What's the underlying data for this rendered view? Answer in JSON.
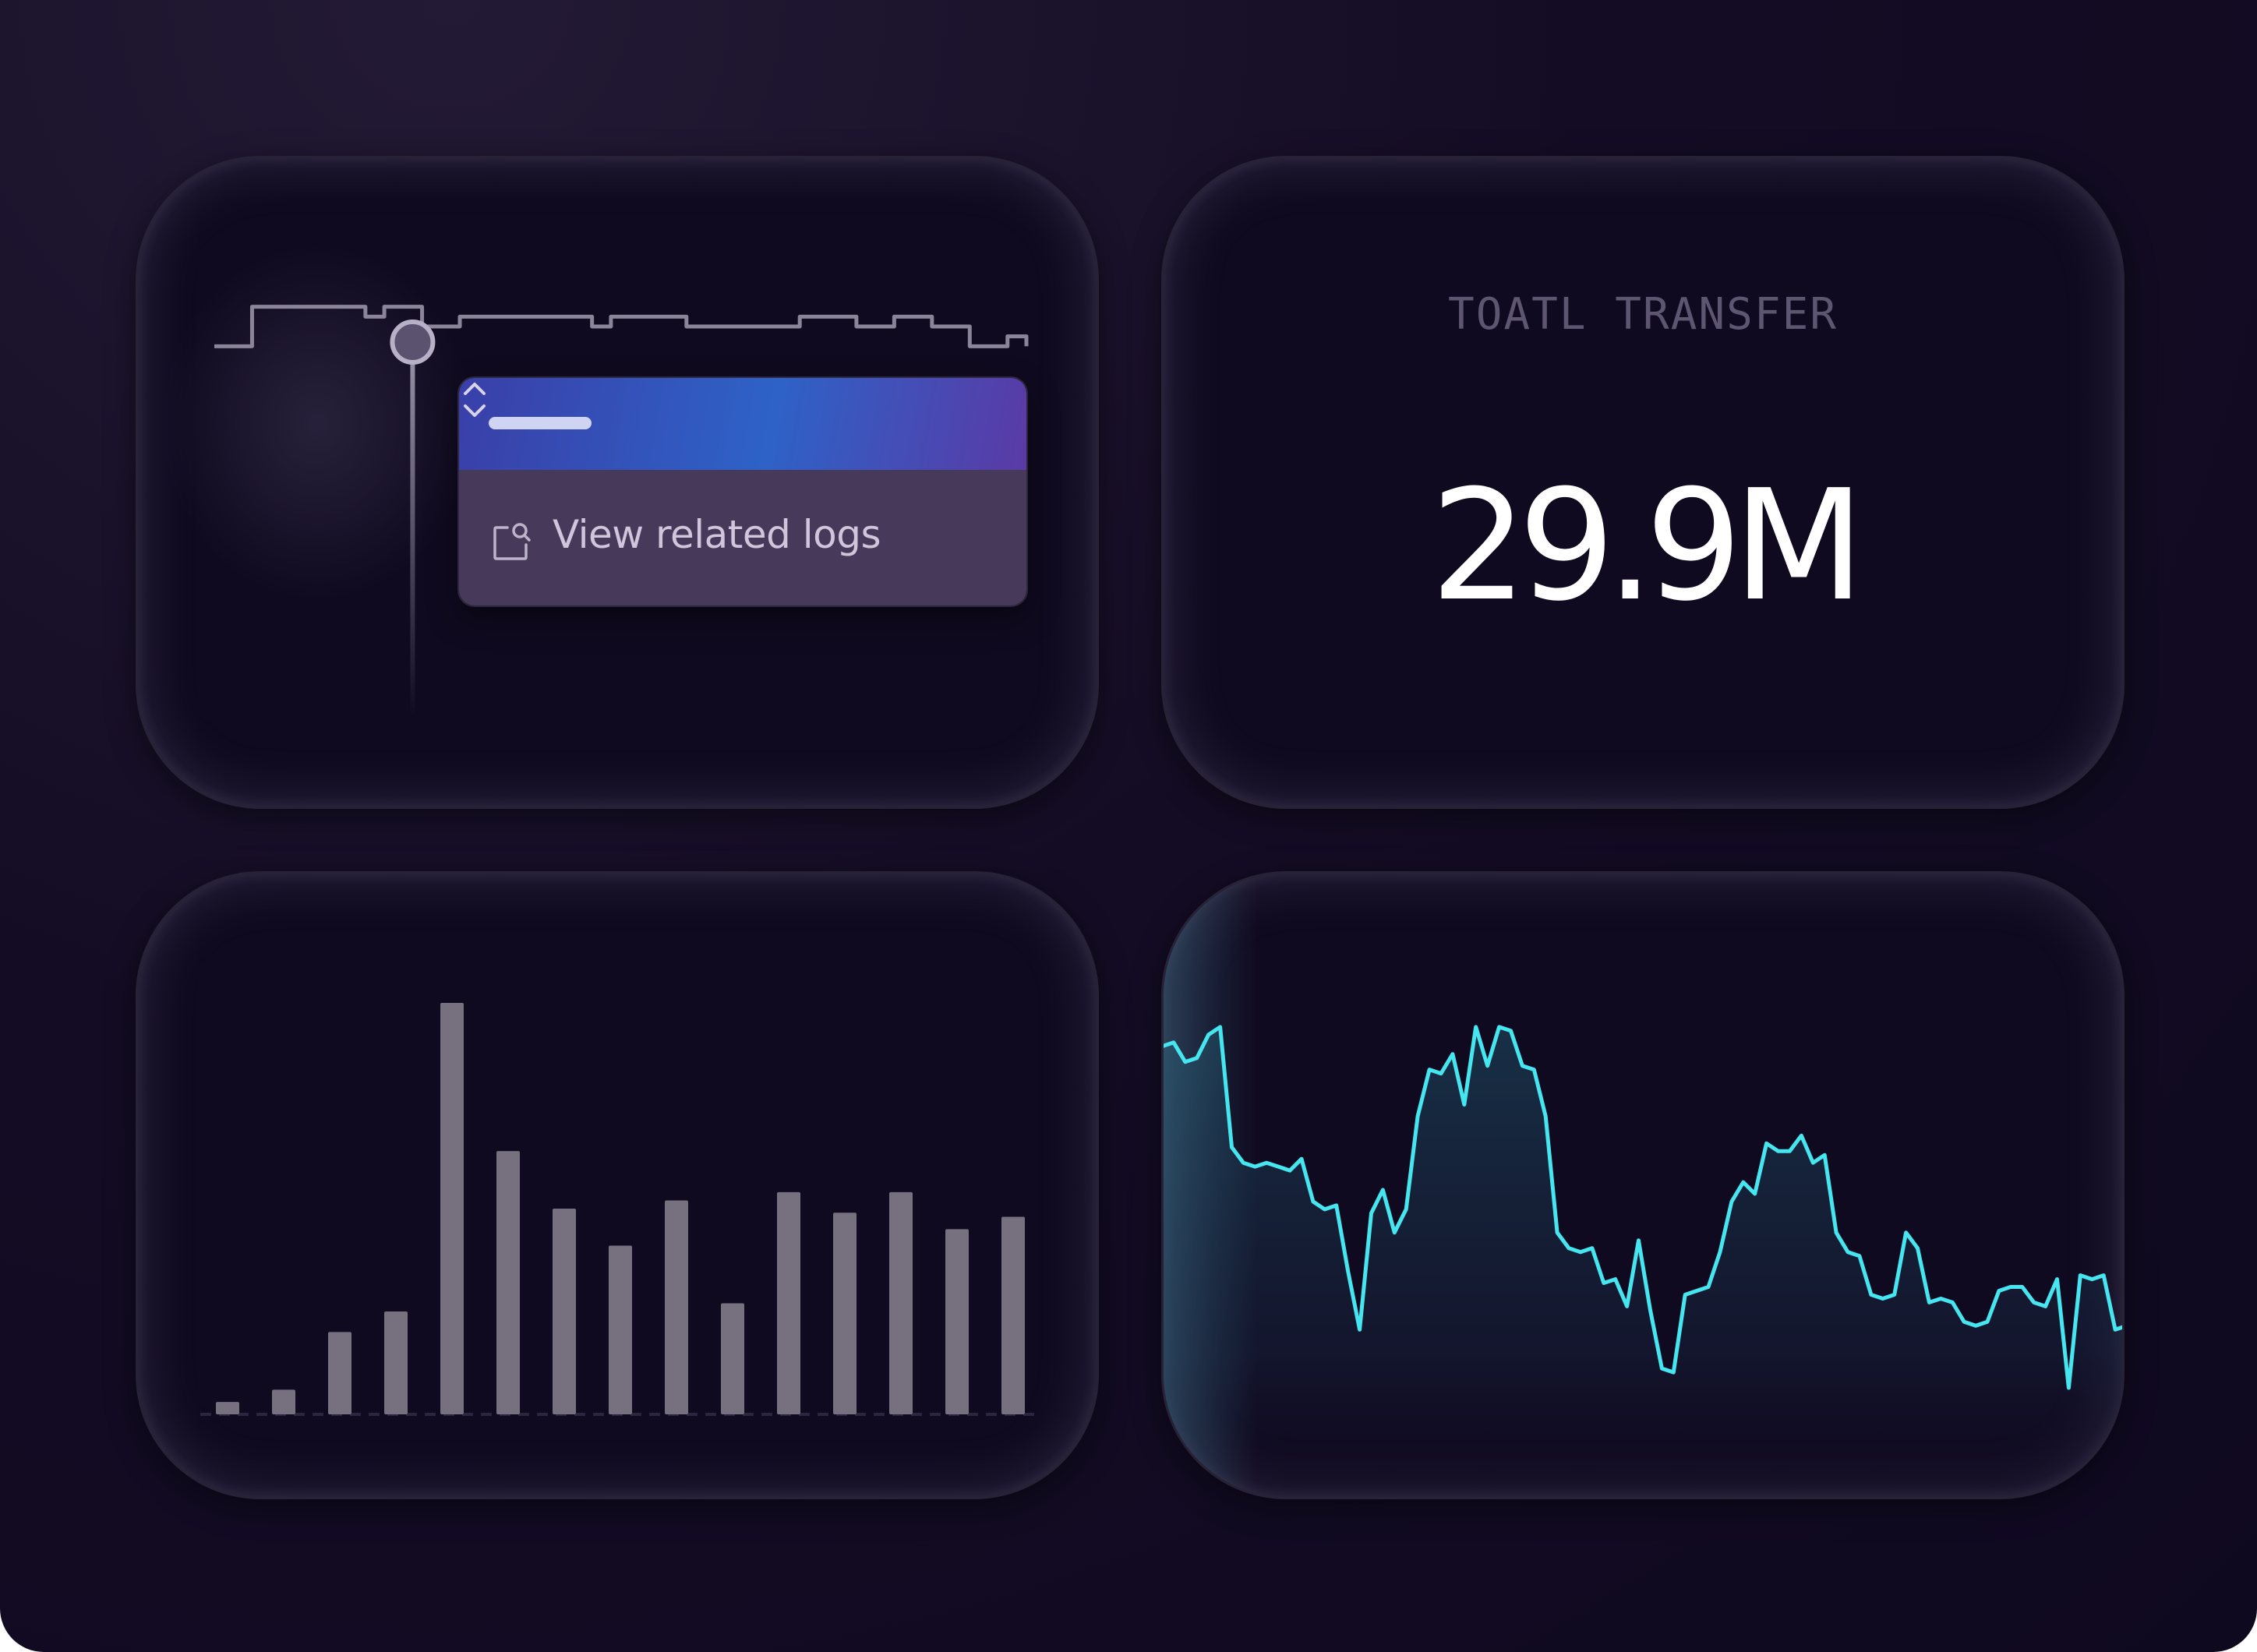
{
  "popup": {
    "action_label": "View related logs",
    "action_icon": "search-document-icon",
    "expand_icon": "chevron-up-down-icon"
  },
  "stat": {
    "label": "TOATL TRANSFER",
    "value": "29.9M"
  },
  "colors": {
    "background": "#100a20",
    "bar": "#77707f",
    "line_accent": "#45e6f0",
    "muted_line": "#8c8599",
    "popup_header_gradient": [
      "#3a3fa8",
      "#2e62c7",
      "#5a3aa6"
    ],
    "popup_body": "#46395a"
  },
  "chart_data": [
    {
      "type": "line",
      "title": "",
      "xlabel": "",
      "ylabel": "",
      "grid": false,
      "series": [
        {
          "values": [
            0,
            0,
            4,
            4,
            4,
            4,
            4,
            4,
            3,
            4,
            4,
            2,
            2,
            3,
            3,
            3,
            3,
            3,
            3,
            3,
            2,
            3,
            3,
            3,
            3,
            2,
            2,
            2,
            2,
            2,
            2,
            3,
            3,
            3,
            2,
            2,
            3,
            3,
            2,
            2,
            0,
            0,
            1,
            0
          ]
        }
      ],
      "ylim": [
        -10,
        5
      ],
      "selected_index": 10
    },
    {
      "type": "bar",
      "title": "",
      "xlabel": "",
      "ylabel": "",
      "grid": false,
      "values": [
        3,
        6,
        20,
        25,
        100,
        64,
        50,
        41,
        52,
        27,
        54,
        49,
        54,
        45,
        48
      ],
      "ylim": [
        0,
        100
      ]
    },
    {
      "type": "area",
      "title": "",
      "xlabel": "",
      "ylabel": "",
      "grid": false,
      "values": [
        88,
        89,
        84,
        85,
        91,
        93,
        62,
        58,
        57,
        58,
        57,
        56,
        59,
        48,
        46,
        47,
        30,
        15,
        45,
        51,
        40,
        46,
        70,
        82,
        81,
        86,
        73,
        93,
        83,
        93,
        92,
        83,
        82,
        70,
        40,
        36,
        35,
        36,
        27,
        28,
        21,
        38,
        20,
        5,
        4,
        24,
        25,
        26,
        35,
        48,
        53,
        50,
        63,
        61,
        61,
        65,
        58,
        60,
        40,
        35,
        34,
        24,
        23,
        24,
        40,
        36,
        22,
        23,
        22,
        17,
        16,
        17,
        25,
        26,
        26,
        22,
        21,
        28,
        0,
        29,
        28,
        29,
        15,
        16
      ]
    }
  ]
}
